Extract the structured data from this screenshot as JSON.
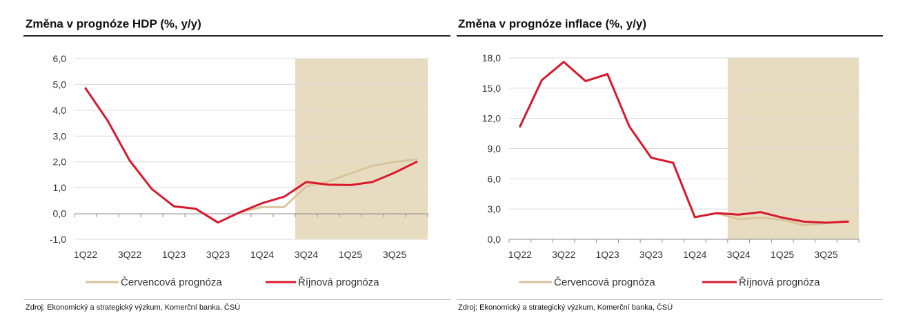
{
  "chart_data": [
    {
      "type": "line",
      "title": "Změna v prognóze HDP (%, y/y)",
      "source": "Zdroj: Ekonomický a strategický výzkum, Komerční banka, ČSÚ",
      "ylim": [
        -1.0,
        6.0
      ],
      "y_ticks": [
        "6,0",
        "5,0",
        "4,0",
        "3,0",
        "2,0",
        "1,0",
        "0,0",
        "-1,0"
      ],
      "y_tick_values": [
        6,
        5,
        4,
        3,
        2,
        1,
        0,
        -1
      ],
      "x": [
        "1Q22",
        "2Q22",
        "3Q22",
        "4Q22",
        "1Q23",
        "2Q23",
        "3Q23",
        "4Q23",
        "1Q24",
        "2Q24",
        "3Q24",
        "4Q24",
        "1Q25",
        "2Q25",
        "3Q25",
        "4Q25"
      ],
      "x_tick_labels": [
        "1Q22",
        "3Q22",
        "1Q23",
        "3Q23",
        "1Q24",
        "3Q24",
        "1Q25",
        "3Q25"
      ],
      "shaded_from": "3Q24",
      "grid": true,
      "legend_position": "bottom",
      "series": [
        {
          "name": "Červencová prognóza",
          "color": "#d9c49b",
          "values": [
            4.85,
            3.6,
            2.05,
            0.95,
            0.28,
            0.18,
            -0.35,
            0.05,
            0.25,
            0.25,
            1.05,
            1.25,
            1.55,
            1.85,
            2.0,
            2.1
          ]
        },
        {
          "name": "Říjnová prognóza",
          "color": "#d9182e",
          "values": [
            4.85,
            3.6,
            2.05,
            0.95,
            0.28,
            0.18,
            -0.35,
            0.05,
            0.4,
            0.65,
            1.22,
            1.12,
            1.1,
            1.22,
            1.58,
            2.0
          ]
        }
      ]
    },
    {
      "type": "line",
      "title": "Změna v prognóze inflace (%, y/y)",
      "source": "Zdroj: Ekonomický a strategický výzkum, Komerční banka, ČSÚ",
      "ylim": [
        0.0,
        18.0
      ],
      "y_ticks": [
        "18,0",
        "15,0",
        "12,0",
        "9,0",
        "6,0",
        "3,0",
        "0,0"
      ],
      "y_tick_values": [
        18,
        15,
        12,
        9,
        6,
        3,
        0
      ],
      "x": [
        "1Q22",
        "2Q22",
        "3Q22",
        "4Q22",
        "1Q23",
        "2Q23",
        "3Q23",
        "4Q23",
        "1Q24",
        "2Q24",
        "3Q24",
        "4Q24",
        "1Q25",
        "2Q25",
        "3Q25",
        "4Q25"
      ],
      "x_tick_labels": [
        "1Q22",
        "3Q22",
        "1Q23",
        "3Q23",
        "1Q24",
        "3Q24",
        "1Q25",
        "3Q25"
      ],
      "shaded_from": "3Q24",
      "grid": true,
      "legend_position": "bottom",
      "series": [
        {
          "name": "Červencová prognóza",
          "color": "#d9c49b",
          "values": [
            11.2,
            15.8,
            17.6,
            15.7,
            16.4,
            11.2,
            8.1,
            7.6,
            2.2,
            2.6,
            2.0,
            2.15,
            1.95,
            1.4,
            1.6,
            1.85
          ]
        },
        {
          "name": "Říjnová prognóza",
          "color": "#d9182e",
          "values": [
            11.2,
            15.8,
            17.6,
            15.7,
            16.4,
            11.2,
            8.1,
            7.6,
            2.2,
            2.6,
            2.45,
            2.7,
            2.15,
            1.75,
            1.65,
            1.75
          ]
        }
      ]
    }
  ]
}
